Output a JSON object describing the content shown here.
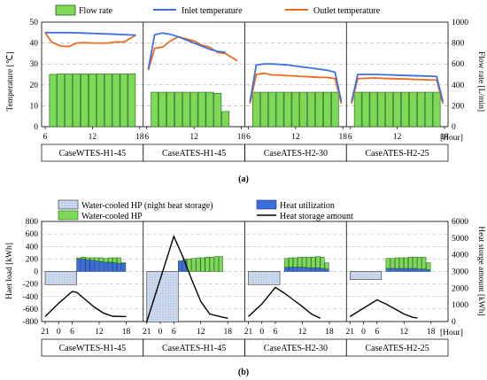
{
  "figure_a": {
    "label": "(a)",
    "legend": {
      "flow": "Flow rate",
      "inlet": "Inlet temperature",
      "outlet": "Outlet temperature"
    },
    "left_axis_label": "Temperature [℃]",
    "right_axis_label": "Flow rate [L/min]",
    "hour_unit": "[Hour]",
    "x_ticks": [
      "6",
      "12",
      "18"
    ],
    "y_left_ticks": [
      "0",
      "10",
      "20",
      "30",
      "40",
      "50"
    ],
    "y_right_ticks": [
      "0",
      "200",
      "400",
      "600",
      "800",
      "1000"
    ],
    "colors": {
      "flow": "#7ed957",
      "inlet": "#3f72e0",
      "outlet": "#ee6a23"
    }
  },
  "figure_b": {
    "label": "(b)",
    "legend": {
      "night": "Water-cooled HP (night heat storage)",
      "util": "Heat utilization",
      "day": "Water-cooled HP",
      "storage": "Heat storage amount"
    },
    "left_axis_label": "Haet load [kWh]",
    "right_axis_label": "Heat storge amount [kWh]",
    "hour_unit": "[Hour]",
    "x_ticks": [
      "21",
      "0",
      "6",
      "12",
      "18"
    ],
    "y_left_ticks": [
      "-800",
      "-600",
      "-400",
      "-200",
      "0",
      "200",
      "400",
      "600",
      "800"
    ],
    "y_right_ticks": [
      "0",
      "1000",
      "2000",
      "3000",
      "4000",
      "5000",
      "6000"
    ],
    "colors": {
      "night": "#c9d9f0",
      "util": "#3a6fd8",
      "day": "#7ed957",
      "storage": "#000000"
    }
  },
  "chart_data": [
    {
      "type": "bar",
      "title": "",
      "xlabel": "[Hour]",
      "ylabel": "Temperature [℃]",
      "y2label": "Flow rate [L/min]",
      "ylim": [
        0,
        50
      ],
      "y2lim": [
        0,
        1000
      ],
      "xlim": [
        6,
        18
      ],
      "grid": true,
      "legend_position": "top",
      "panels": [
        {
          "name": "CaseWTES-H1-45",
          "x": [
            7,
            8,
            9,
            10,
            11,
            12,
            13,
            14,
            15,
            16,
            17
          ],
          "flow_rate": [
            500,
            505,
            505,
            505,
            505,
            505,
            505,
            505,
            505,
            505,
            505
          ],
          "inlet_temperature": [
            {
              "x": 6,
              "y": 45
            },
            {
              "x": 9,
              "y": 45
            },
            {
              "x": 12,
              "y": 44.6
            },
            {
              "x": 15,
              "y": 44.2
            },
            {
              "x": 17.5,
              "y": 43.8
            }
          ],
          "outlet_temperature": [
            {
              "x": 6,
              "y": 45
            },
            {
              "x": 6.8,
              "y": 40.5
            },
            {
              "x": 8,
              "y": 38.5
            },
            {
              "x": 9,
              "y": 38.3
            },
            {
              "x": 10,
              "y": 40
            },
            {
              "x": 11,
              "y": 40.2
            },
            {
              "x": 12,
              "y": 40
            },
            {
              "x": 13,
              "y": 40
            },
            {
              "x": 14,
              "y": 40
            },
            {
              "x": 15,
              "y": 40.5
            },
            {
              "x": 16,
              "y": 40.5
            },
            {
              "x": 17.5,
              "y": 43.8
            }
          ]
        },
        {
          "name": "CaseATES-H1-45",
          "x": [
            7,
            8,
            9,
            10,
            11,
            12,
            13,
            14,
            15,
            16
          ],
          "flow_rate": [
            330,
            330,
            330,
            330,
            330,
            330,
            330,
            330,
            320,
            145
          ],
          "inlet_temperature": [
            {
              "x": 6.2,
              "y": 27.5
            },
            {
              "x": 7,
              "y": 44
            },
            {
              "x": 8,
              "y": 44.8
            },
            {
              "x": 9,
              "y": 44.2
            },
            {
              "x": 10,
              "y": 43
            },
            {
              "x": 11,
              "y": 41.5
            },
            {
              "x": 12,
              "y": 40
            },
            {
              "x": 13,
              "y": 38.5
            },
            {
              "x": 14,
              "y": 37
            },
            {
              "x": 15,
              "y": 36
            },
            {
              "x": 16,
              "y": 35.5
            }
          ],
          "outlet_temperature": [
            {
              "x": 6.2,
              "y": 27
            },
            {
              "x": 7,
              "y": 37.5
            },
            {
              "x": 8,
              "y": 38
            },
            {
              "x": 9,
              "y": 41
            },
            {
              "x": 10,
              "y": 43
            },
            {
              "x": 11,
              "y": 42
            },
            {
              "x": 12,
              "y": 41
            },
            {
              "x": 13,
              "y": 39
            },
            {
              "x": 14,
              "y": 38
            },
            {
              "x": 15,
              "y": 35.5
            },
            {
              "x": 16,
              "y": 35
            },
            {
              "x": 17.5,
              "y": 31.5
            }
          ]
        },
        {
          "name": "CaseATES-H2-30",
          "x": [
            7,
            8,
            9,
            10,
            11,
            12,
            13,
            14,
            15,
            16,
            17
          ],
          "flow_rate": [
            330,
            330,
            330,
            330,
            330,
            330,
            330,
            330,
            330,
            330,
            330
          ],
          "inlet_temperature": [
            {
              "x": 6.2,
              "y": 12
            },
            {
              "x": 7,
              "y": 29.5
            },
            {
              "x": 8,
              "y": 30
            },
            {
              "x": 9,
              "y": 30
            },
            {
              "x": 10,
              "y": 29.8
            },
            {
              "x": 11,
              "y": 29.5
            },
            {
              "x": 12,
              "y": 29
            },
            {
              "x": 13,
              "y": 28.5
            },
            {
              "x": 14,
              "y": 28
            },
            {
              "x": 15,
              "y": 27.5
            },
            {
              "x": 16,
              "y": 27
            },
            {
              "x": 17,
              "y": 26
            },
            {
              "x": 17.8,
              "y": 12
            }
          ],
          "outlet_temperature": [
            {
              "x": 6.2,
              "y": 11
            },
            {
              "x": 7,
              "y": 25
            },
            {
              "x": 8,
              "y": 25.5
            },
            {
              "x": 9,
              "y": 24.8
            },
            {
              "x": 10,
              "y": 24.7
            },
            {
              "x": 11,
              "y": 24.4
            },
            {
              "x": 12,
              "y": 24.2
            },
            {
              "x": 13,
              "y": 24
            },
            {
              "x": 14,
              "y": 23.8
            },
            {
              "x": 15,
              "y": 23.6
            },
            {
              "x": 16,
              "y": 23.5
            },
            {
              "x": 17,
              "y": 23
            },
            {
              "x": 17.8,
              "y": 11
            }
          ]
        },
        {
          "name": "CaseATES-H2-25",
          "x": [
            7,
            8,
            9,
            10,
            11,
            12,
            13,
            14,
            15,
            16,
            17
          ],
          "flow_rate": [
            330,
            330,
            330,
            330,
            330,
            330,
            330,
            330,
            330,
            330,
            330
          ],
          "inlet_temperature": [
            {
              "x": 6.2,
              "y": 12
            },
            {
              "x": 7,
              "y": 25
            },
            {
              "x": 9,
              "y": 25
            },
            {
              "x": 11,
              "y": 24.8
            },
            {
              "x": 13,
              "y": 24.5
            },
            {
              "x": 15,
              "y": 24.3
            },
            {
              "x": 17,
              "y": 24
            },
            {
              "x": 17.8,
              "y": 12
            }
          ],
          "outlet_temperature": [
            {
              "x": 6.2,
              "y": 11
            },
            {
              "x": 7,
              "y": 23
            },
            {
              "x": 9,
              "y": 23.3
            },
            {
              "x": 11,
              "y": 23
            },
            {
              "x": 13,
              "y": 22.8
            },
            {
              "x": 15,
              "y": 22.5
            },
            {
              "x": 17,
              "y": 22.3
            },
            {
              "x": 17.8,
              "y": 11
            }
          ]
        }
      ]
    },
    {
      "type": "bar",
      "title": "",
      "xlabel": "[Hour]",
      "ylabel": "Haet load [kWh]",
      "y2label": "Heat storge amount [kWh]",
      "ylim": [
        -800,
        800
      ],
      "y2lim": [
        0,
        6000
      ],
      "xlim": [
        21,
        42
      ],
      "grid": true,
      "legend_position": "top",
      "panels": [
        {
          "name": "CaseWTES-H1-45",
          "night_heat_storage": [
            {
              "from": 21,
              "to": 28,
              "value": -210
            }
          ],
          "heat_utilization": [
            {
              "x": 28,
              "v": 200
            },
            {
              "x": 29,
              "v": 200
            },
            {
              "x": 30,
              "v": 190
            },
            {
              "x": 31,
              "v": 180
            },
            {
              "x": 32,
              "v": 170
            },
            {
              "x": 33,
              "v": 160
            },
            {
              "x": 34,
              "v": 150
            },
            {
              "x": 35,
              "v": 150
            },
            {
              "x": 36,
              "v": 140
            },
            {
              "x": 37,
              "v": 130
            },
            {
              "x": 38,
              "v": 130
            }
          ],
          "water_cooled_hp": [
            {
              "x": 28,
              "v": 20
            },
            {
              "x": 29,
              "v": 30
            },
            {
              "x": 30,
              "v": 30
            },
            {
              "x": 31,
              "v": 40
            },
            {
              "x": 32,
              "v": 50
            },
            {
              "x": 33,
              "v": 60
            },
            {
              "x": 34,
              "v": 60
            },
            {
              "x": 35,
              "v": 70
            },
            {
              "x": 36,
              "v": 80
            },
            {
              "x": 37,
              "v": 90
            },
            {
              "x": 38,
              "v": 10
            }
          ],
          "heat_storage_amount": [
            {
              "x": 21,
              "y": 300
            },
            {
              "x": 24,
              "y": 1100
            },
            {
              "x": 27,
              "y": 1800
            },
            {
              "x": 28,
              "y": 1750
            },
            {
              "x": 30,
              "y": 1300
            },
            {
              "x": 32,
              "y": 850
            },
            {
              "x": 34,
              "y": 500
            },
            {
              "x": 36,
              "y": 320
            },
            {
              "x": 39,
              "y": 300
            }
          ]
        },
        {
          "name": "CaseATES-H1-45",
          "night_heat_storage": [
            {
              "from": 21,
              "to": 28,
              "value": -810
            }
          ],
          "heat_utilization": [
            {
              "x": 28,
              "v": 170
            },
            {
              "x": 29,
              "v": 170
            }
          ],
          "water_cooled_hp": [
            {
              "x": 29,
              "v": 30
            },
            {
              "x": 30,
              "v": 200
            },
            {
              "x": 31,
              "v": 210
            },
            {
              "x": 32,
              "v": 220
            },
            {
              "x": 33,
              "v": 220
            },
            {
              "x": 34,
              "v": 230
            },
            {
              "x": 35,
              "v": 230
            },
            {
              "x": 36,
              "v": 240
            },
            {
              "x": 37,
              "v": 240
            }
          ],
          "heat_storage_amount": [
            {
              "x": 21,
              "y": 0
            },
            {
              "x": 27,
              "y": 5100
            },
            {
              "x": 29,
              "y": 3900
            },
            {
              "x": 31,
              "y": 2500
            },
            {
              "x": 33,
              "y": 1200
            },
            {
              "x": 35,
              "y": 450
            },
            {
              "x": 38,
              "y": 250
            },
            {
              "x": 39,
              "y": 200
            }
          ]
        },
        {
          "name": "CaseATES-H2-30",
          "night_heat_storage": [
            {
              "from": 21,
              "to": 28,
              "value": -210
            }
          ],
          "heat_utilization": [
            {
              "x": 29,
              "v": 70
            },
            {
              "x": 30,
              "v": 70
            },
            {
              "x": 31,
              "v": 70
            },
            {
              "x": 32,
              "v": 70
            },
            {
              "x": 33,
              "v": 70
            },
            {
              "x": 34,
              "v": 60
            },
            {
              "x": 35,
              "v": 60
            },
            {
              "x": 36,
              "v": 60
            },
            {
              "x": 37,
              "v": 50
            },
            {
              "x": 38,
              "v": 40
            }
          ],
          "water_cooled_hp": [
            {
              "x": 29,
              "v": 140
            },
            {
              "x": 30,
              "v": 150
            },
            {
              "x": 31,
              "v": 150
            },
            {
              "x": 32,
              "v": 160
            },
            {
              "x": 33,
              "v": 160
            },
            {
              "x": 34,
              "v": 170
            },
            {
              "x": 35,
              "v": 170
            },
            {
              "x": 36,
              "v": 180
            },
            {
              "x": 37,
              "v": 180
            },
            {
              "x": 38,
              "v": 100
            }
          ],
          "heat_storage_amount": [
            {
              "x": 21,
              "y": 300
            },
            {
              "x": 24,
              "y": 1050
            },
            {
              "x": 27,
              "y": 2050
            },
            {
              "x": 29,
              "y": 1700
            },
            {
              "x": 31,
              "y": 1300
            },
            {
              "x": 33,
              "y": 900
            },
            {
              "x": 35,
              "y": 450
            },
            {
              "x": 37,
              "y": 200
            }
          ]
        },
        {
          "name": "CaseATES-H2-25",
          "night_heat_storage": [
            {
              "from": 21,
              "to": 28,
              "value": -130
            }
          ],
          "heat_utilization": [
            {
              "x": 29,
              "v": 50
            },
            {
              "x": 30,
              "v": 50
            },
            {
              "x": 31,
              "v": 50
            },
            {
              "x": 32,
              "v": 50
            },
            {
              "x": 33,
              "v": 50
            },
            {
              "x": 34,
              "v": 50
            },
            {
              "x": 35,
              "v": 50
            },
            {
              "x": 36,
              "v": 40
            },
            {
              "x": 37,
              "v": 40
            },
            {
              "x": 38,
              "v": 30
            }
          ],
          "water_cooled_hp": [
            {
              "x": 29,
              "v": 160
            },
            {
              "x": 30,
              "v": 160
            },
            {
              "x": 31,
              "v": 170
            },
            {
              "x": 32,
              "v": 170
            },
            {
              "x": 33,
              "v": 170
            },
            {
              "x": 34,
              "v": 180
            },
            {
              "x": 35,
              "v": 180
            },
            {
              "x": 36,
              "v": 190
            },
            {
              "x": 37,
              "v": 190
            },
            {
              "x": 38,
              "v": 110
            }
          ],
          "heat_storage_amount": [
            {
              "x": 21,
              "y": 300
            },
            {
              "x": 24,
              "y": 800
            },
            {
              "x": 27,
              "y": 1300
            },
            {
              "x": 29,
              "y": 1050
            },
            {
              "x": 31,
              "y": 750
            },
            {
              "x": 33,
              "y": 450
            },
            {
              "x": 35,
              "y": 250
            },
            {
              "x": 36,
              "y": 220
            }
          ]
        }
      ]
    }
  ]
}
